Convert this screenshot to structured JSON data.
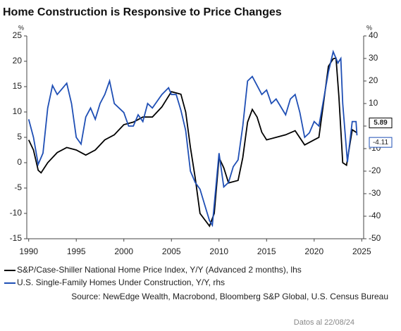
{
  "chart_data": {
    "type": "line",
    "title": "Home Construction is Responsive to Price Changes",
    "y_unit": "%",
    "y2_unit": "%",
    "xlim": [
      1989.8,
      2025.2
    ],
    "xticks": [
      1990,
      1995,
      2000,
      2005,
      2010,
      2015,
      2020,
      2025
    ],
    "ylim": [
      -15,
      25
    ],
    "yticks": [
      -15,
      -10,
      -5,
      0,
      5,
      10,
      15,
      20,
      25
    ],
    "y2lim": [
      -50,
      40
    ],
    "y2ticks": [
      -50,
      -40,
      -30,
      -20,
      -10,
      0,
      10,
      20,
      30,
      40
    ],
    "series": [
      {
        "name": "S&P/Case-Shiller National Home Price Index, Y/Y (Advanced 2 months), lhs",
        "color": "#000000",
        "x": [
          1990,
          1990.5,
          1991,
          1991.3,
          1992,
          1993,
          1994,
          1995,
          1996,
          1997,
          1998,
          1999,
          2000,
          2001,
          2002,
          2003,
          2004,
          2005,
          2006,
          2006.5,
          2007,
          2007.5,
          2008,
          2009,
          2009.5,
          2010,
          2010.5,
          2011,
          2012,
          2012.5,
          2013,
          2013.5,
          2014,
          2014.5,
          2015,
          2016,
          2017,
          2018,
          2019,
          2020,
          2020.5,
          2021,
          2021.5,
          2022,
          2022.3,
          2022.6,
          2023,
          2023.4,
          2024,
          2024.5
        ],
        "values": [
          4.5,
          2.5,
          -1.5,
          -2,
          0,
          2,
          3,
          2.5,
          1.5,
          2.5,
          4.5,
          5.5,
          7.5,
          8,
          9,
          9,
          11,
          14,
          13.5,
          10,
          3,
          -3,
          -10,
          -12.5,
          -10,
          1,
          -1,
          -4,
          -3.5,
          1,
          8,
          10.5,
          9,
          6,
          4.5,
          5,
          5.5,
          6.3,
          3.5,
          4.5,
          5,
          12,
          19,
          20.5,
          20.6,
          13,
          0,
          -0.5,
          6.5,
          5.89
        ]
      },
      {
        "name": "U.S. Single-Family Homes Under Construction, Y/Y, rhs",
        "color": "#1f4fb5",
        "axis": "y2",
        "x": [
          1990,
          1990.5,
          1991,
          1991.5,
          1992,
          1992.5,
          1993,
          1994,
          1994.5,
          1995,
          1995.5,
          1996,
          1996.5,
          1997,
          1997.5,
          1998,
          1998.5,
          1999,
          2000,
          2000.5,
          2001,
          2001.5,
          2002,
          2002.5,
          2003,
          2004,
          2004.7,
          2005,
          2005.5,
          2006,
          2006.5,
          2007,
          2007.5,
          2008,
          2008.5,
          2009,
          2009.3,
          2010,
          2010.5,
          2011,
          2011.5,
          2012,
          2012.5,
          2013,
          2013.5,
          2014,
          2014.5,
          2015,
          2015.5,
          2016,
          2017,
          2017.5,
          2018,
          2018.5,
          2019,
          2019.5,
          2020,
          2020.5,
          2021,
          2021.5,
          2022,
          2022.5,
          2022.8,
          2023,
          2023.5,
          2024,
          2024.4,
          2024.5
        ],
        "values": [
          3,
          -5,
          -17,
          -12,
          8,
          18,
          14,
          19,
          10,
          -5,
          -8,
          4,
          8,
          3,
          10,
          14,
          20,
          10,
          6,
          0,
          0,
          5,
          2,
          10,
          8,
          14,
          17,
          14,
          14,
          7,
          -2,
          -20,
          -25,
          -28,
          -35,
          -42,
          -44,
          -12,
          -27,
          -25,
          -18,
          -15,
          0,
          20,
          22,
          18,
          14,
          16,
          10,
          12,
          5,
          12,
          14,
          6,
          -5,
          -3,
          2,
          0,
          12,
          24,
          33,
          28,
          30,
          10,
          -16,
          2,
          2,
          -4.11
        ]
      }
    ],
    "source": "Source: NewEdge Wealth, Macrobond, Bloomberg S&P Global, U.S. Census Bureau",
    "note": "Datos al 22/08/24"
  }
}
